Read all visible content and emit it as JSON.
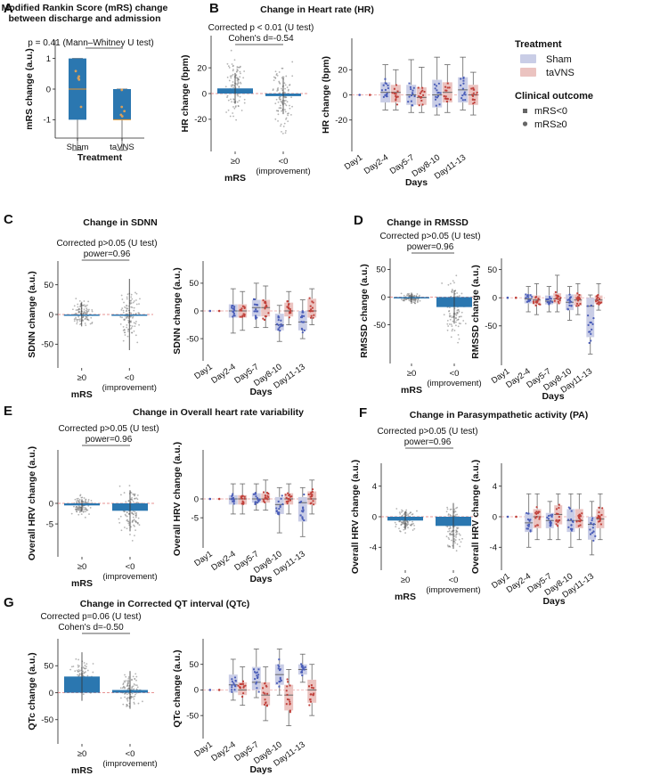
{
  "colors": {
    "bar_blue": "#2b77b0",
    "sham": "#c9cde6",
    "tavns": "#ebc3c0",
    "sham_dot": "#4a5db8",
    "tavns_dot": "#c0403a",
    "median_orange": "#e8962e",
    "jitter_orange": "#d9a05a",
    "zero_line": "#e07070"
  },
  "legend": {
    "treatment_title": "Treatment",
    "treatment_items": [
      "Sham",
      "taVNS"
    ],
    "outcome_title": "Clinical outcome",
    "outcome_items": [
      "mRS<0",
      "mRS≥0"
    ]
  },
  "chart_data": [
    {
      "id": "A",
      "label": "A",
      "type": "box",
      "title": [
        "Modified Rankin Score (mRS) change",
        "between discharge and admission"
      ],
      "annotation": "p = 0.41 (Mann–Whitney U test)",
      "xlabel": "Treatment",
      "ylabel": "mRS change (a.u.)",
      "ylim": [
        -1.6,
        1.6
      ],
      "yticks": [
        -1,
        0,
        1
      ],
      "categories": [
        "Sham",
        "taVNS"
      ],
      "boxes": [
        {
          "q1": -1,
          "median": 0,
          "q3": 1,
          "whisker_low": -2,
          "whisker_high": 1
        },
        {
          "q1": -1,
          "median": -1,
          "q3": 0,
          "whisker_low": -2,
          "whisker_high": 0
        }
      ]
    },
    {
      "id": "B1",
      "label": "B",
      "type": "bar",
      "title": "Change in Heart rate (HR)",
      "annotation": [
        "Corrected p < 0.01 (U test)",
        "Cohen's d=-0.54"
      ],
      "xlabel": "mRS",
      "ylabel": "HR change (bpm)",
      "ylim": [
        -45,
        45
      ],
      "yticks": [
        -20,
        0,
        20
      ],
      "categories": [
        "≥0",
        "<0"
      ],
      "sublabels": [
        "",
        "(improvement)"
      ],
      "values": [
        4,
        -2
      ],
      "errors": [
        12,
        14
      ],
      "spread": [
        40,
        40
      ]
    },
    {
      "id": "B2",
      "type": "groupbox",
      "xlabel": "Days",
      "ylabel": "HR change (bpm)",
      "ylim": [
        -45,
        45
      ],
      "yticks": [
        -20,
        0,
        20
      ],
      "categories": [
        "Day1",
        "Day2-4",
        "Day5-7",
        "Day8-10",
        "Day11-13"
      ],
      "series": [
        {
          "name": "Sham",
          "boxes": [
            [
              0,
              0,
              0,
              0,
              0
            ],
            [
              -12,
              -6,
              2,
              10,
              24
            ],
            [
              -14,
              -8,
              0,
              8,
              28
            ],
            [
              -16,
              -10,
              0,
              12,
              30
            ],
            [
              -12,
              -6,
              4,
              14,
              30
            ]
          ]
        },
        {
          "name": "taVNS",
          "boxes": [
            [
              0,
              0,
              0,
              0,
              0
            ],
            [
              -12,
              -6,
              2,
              8,
              20
            ],
            [
              -14,
              -8,
              -2,
              6,
              22
            ],
            [
              -14,
              -6,
              2,
              10,
              24
            ],
            [
              -16,
              -8,
              0,
              8,
              18
            ]
          ]
        }
      ]
    },
    {
      "id": "C1",
      "label": "C",
      "type": "bar",
      "title": "Change in SDNN",
      "annotation": [
        "Corrected p>0.05 (U test)",
        "power=0.96"
      ],
      "xlabel": "mRS",
      "ylabel": "SDNN change (a.u.)",
      "ylim": [
        -90,
        90
      ],
      "yticks": [
        -50,
        0,
        50
      ],
      "categories": [
        "≥0",
        "<0"
      ],
      "sublabels": [
        "",
        "(improvement)"
      ],
      "values": [
        0,
        0
      ],
      "errors": [
        20,
        60
      ],
      "spread": [
        40,
        70
      ]
    },
    {
      "id": "C2",
      "type": "groupbox",
      "xlabel": "Days",
      "ylabel": "SDNN change (a.u.)",
      "ylim": [
        -90,
        90
      ],
      "yticks": [
        -50,
        0,
        50
      ],
      "categories": [
        "Day1",
        "Day2-4",
        "Day5-7",
        "Day8-10",
        "Day11-13"
      ],
      "series": [
        {
          "name": "Sham",
          "boxes": [
            [
              0,
              0,
              0,
              0,
              0
            ],
            [
              -40,
              -12,
              0,
              12,
              40
            ],
            [
              -30,
              -10,
              6,
              20,
              50
            ],
            [
              -55,
              -35,
              -25,
              -5,
              10
            ],
            [
              -50,
              -35,
              -20,
              0,
              20
            ]
          ]
        },
        {
          "name": "taVNS",
          "boxes": [
            [
              0,
              0,
              0,
              0,
              0
            ],
            [
              -35,
              -12,
              0,
              12,
              35
            ],
            [
              -30,
              -10,
              6,
              20,
              45
            ],
            [
              -25,
              -10,
              0,
              15,
              35
            ],
            [
              -25,
              -12,
              0,
              22,
              40
            ]
          ]
        }
      ]
    },
    {
      "id": "D1",
      "label": "D",
      "type": "bar",
      "title": "Change in RMSSD",
      "annotation": [
        "Corrected p>0.05 (U test)",
        "power=0.96"
      ],
      "xlabel": "mRS",
      "ylabel": "RMSSD change (a.u.)",
      "ylim": [
        -120,
        70
      ],
      "yticks": [
        -50,
        0,
        50
      ],
      "categories": [
        "≥0",
        "<0"
      ],
      "sublabels": [
        "",
        "(improvement)"
      ],
      "values": [
        -2,
        -18
      ],
      "errors": [
        10,
        30
      ],
      "spread": [
        15,
        90
      ]
    },
    {
      "id": "D2",
      "type": "groupbox",
      "xlabel": "Days",
      "ylabel": "RMSSD change (a.u.)",
      "ylim": [
        -120,
        70
      ],
      "yticks": [
        -50,
        0,
        50
      ],
      "categories": [
        "Day1",
        "Day2-4",
        "Day5-7",
        "Day8-10",
        "Day11-13"
      ],
      "series": [
        {
          "name": "Sham",
          "boxes": [
            [
              0,
              0,
              0,
              0,
              0
            ],
            [
              -25,
              -10,
              -2,
              6,
              20
            ],
            [
              -25,
              -12,
              -6,
              4,
              20
            ],
            [
              -40,
              -22,
              -8,
              6,
              20
            ],
            [
              -100,
              -70,
              -15,
              0,
              5
            ]
          ]
        },
        {
          "name": "taVNS",
          "boxes": [
            [
              0,
              0,
              0,
              0,
              0
            ],
            [
              -30,
              -12,
              -4,
              4,
              25
            ],
            [
              -25,
              -10,
              -2,
              8,
              40
            ],
            [
              -30,
              -14,
              -4,
              6,
              25
            ],
            [
              -22,
              -10,
              -4,
              4,
              25
            ]
          ]
        }
      ]
    },
    {
      "id": "E1",
      "label": "E",
      "type": "bar",
      "title": "Change in Overall heart rate variability",
      "annotation": [
        "Corrected p>0.05 (U test)",
        "power=0.96"
      ],
      "xlabel": "mRS",
      "ylabel": "Overall HRV change (a.u.)",
      "ylim": [
        -13,
        13
      ],
      "yticks": [
        -5,
        0
      ],
      "categories": [
        "≥0",
        "<0"
      ],
      "sublabels": [
        "",
        "(improvement)"
      ],
      "values": [
        -0.5,
        -1.8
      ],
      "errors": [
        1.5,
        5
      ],
      "spread": [
        4,
        11
      ]
    },
    {
      "id": "E2",
      "type": "groupbox",
      "xlabel": "Days",
      "ylabel": "Overall HRV change (a.u.)",
      "ylim": [
        -13,
        13
      ],
      "yticks": [
        -5,
        0
      ],
      "categories": [
        "Day1",
        "Day2-4",
        "Day5-7",
        "Day8-10",
        "Day11-13"
      ],
      "series": [
        {
          "name": "Sham",
          "boxes": [
            [
              0,
              0,
              0,
              0,
              0
            ],
            [
              -4,
              -1.5,
              0,
              1,
              4
            ],
            [
              -3,
              -1,
              0,
              1.5,
              4
            ],
            [
              -9,
              -4,
              -1.5,
              0.5,
              3
            ],
            [
              -10,
              -6,
              -1,
              0.5,
              3
            ]
          ]
        },
        {
          "name": "taVNS",
          "boxes": [
            [
              0,
              0,
              0,
              0,
              0
            ],
            [
              -4,
              -1.5,
              0,
              1,
              4
            ],
            [
              -3,
              -1,
              0,
              1.5,
              5
            ],
            [
              -4,
              -1.5,
              0,
              1.5,
              4
            ],
            [
              -4,
              -1.5,
              0,
              2,
              5
            ]
          ]
        }
      ]
    },
    {
      "id": "F1",
      "label": "F",
      "type": "bar",
      "title": "Change in Parasympathetic activity (PA)",
      "annotation": [
        "Corrected p>0.05 (U test)",
        "power=0.96"
      ],
      "xlabel": "mRS",
      "ylabel": "Overall HRV change (a.u.)",
      "ylim": [
        -7,
        7
      ],
      "yticks": [
        -4,
        0,
        4
      ],
      "categories": [
        "≥0",
        "<0"
      ],
      "sublabels": [
        "",
        "(improvement)"
      ],
      "values": [
        -0.5,
        -1.2
      ],
      "errors": [
        1.2,
        3
      ],
      "spread": [
        2.5,
        5.5
      ]
    },
    {
      "id": "F2",
      "type": "groupbox",
      "xlabel": "Days",
      "ylabel": "Overall HRV change (a.u.)",
      "ylim": [
        -7,
        7
      ],
      "yticks": [
        -4,
        0,
        4
      ],
      "categories": [
        "Day1",
        "Day2-4",
        "Day5-7",
        "Day8-10",
        "Day11-13"
      ],
      "series": [
        {
          "name": "Sham",
          "boxes": [
            [
              0,
              0,
              0,
              0,
              0
            ],
            [
              -4,
              -2,
              -0.8,
              0.5,
              3
            ],
            [
              -3,
              -1.5,
              -0.5,
              0.5,
              2
            ],
            [
              -4,
              -2,
              -0.5,
              1,
              3
            ],
            [
              -5,
              -3,
              -1,
              0,
              2
            ]
          ]
        },
        {
          "name": "taVNS",
          "boxes": [
            [
              0,
              0,
              0,
              0,
              0
            ],
            [
              -3,
              -1.5,
              0,
              1,
              3
            ],
            [
              -3,
              -1,
              0.3,
              1.5,
              3
            ],
            [
              -3,
              -1.5,
              -0.5,
              1,
              3
            ],
            [
              -3,
              -1.5,
              -0.3,
              1,
              3
            ]
          ]
        }
      ]
    },
    {
      "id": "G1",
      "label": "G",
      "type": "bar",
      "title": "Change in Corrected QT interval (QTc)",
      "annotation": [
        "Corrected p=0.06 (U test)",
        "Cohen's d=-0.50"
      ],
      "xlabel": "mRS",
      "ylabel": "QTc change (a.u.)",
      "ylim": [
        -95,
        100
      ],
      "yticks": [
        -50,
        0,
        50
      ],
      "categories": [
        "≥0",
        "<0"
      ],
      "sublabels": [
        "",
        "(improvement)"
      ],
      "values": [
        30,
        5
      ],
      "errors": [
        45,
        35
      ],
      "spread": [
        60,
        50
      ]
    },
    {
      "id": "G2",
      "type": "groupbox",
      "xlabel": "Days",
      "ylabel": "QTc change (a.u.)",
      "ylim": [
        -95,
        100
      ],
      "yticks": [
        -50,
        0,
        50
      ],
      "categories": [
        "Day1",
        "Day2-4",
        "Day5-7",
        "Day8-10",
        "Day11-13"
      ],
      "series": [
        {
          "name": "Sham",
          "boxes": [
            [
              0,
              0,
              0,
              0,
              0
            ],
            [
              -20,
              -5,
              10,
              30,
              60
            ],
            [
              -15,
              0,
              15,
              45,
              80
            ],
            [
              -10,
              10,
              30,
              50,
              80
            ],
            [
              15,
              30,
              40,
              50,
              70
            ]
          ]
        },
        {
          "name": "taVNS",
          "boxes": [
            [
              0,
              0,
              0,
              0,
              0
            ],
            [
              -30,
              -10,
              0,
              15,
              45
            ],
            [
              -60,
              -30,
              -10,
              15,
              45
            ],
            [
              -70,
              -40,
              -10,
              10,
              40
            ],
            [
              -50,
              -25,
              0,
              20,
              50
            ]
          ]
        }
      ]
    }
  ]
}
